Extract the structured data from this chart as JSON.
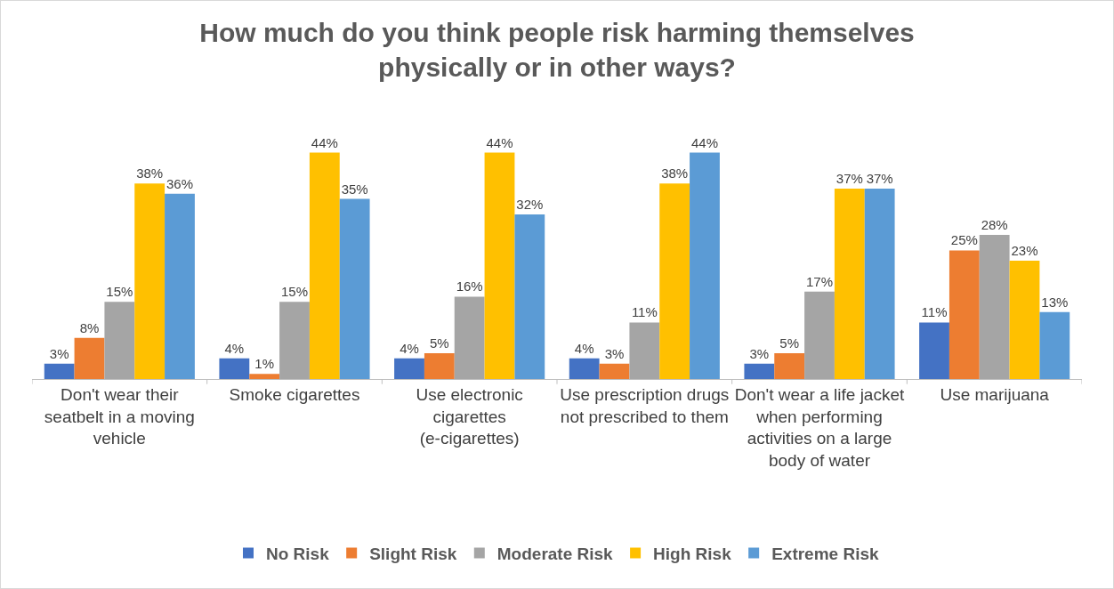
{
  "chart_data": {
    "type": "bar",
    "title": "How much do you think people risk harming themselves physically or in other ways?",
    "categories": [
      "Don't wear their seatbelt in a moving vehicle",
      "Smoke cigarettes",
      "Use electronic cigarettes (e-cigarettes)",
      "Use prescription drugs not prescribed to them",
      "Don't wear a life jacket when performing activities on a large body of water",
      "Use marijuana"
    ],
    "series": [
      {
        "name": "No Risk",
        "color": "#4472c4",
        "values": [
          3,
          4,
          4,
          4,
          3,
          11
        ],
        "value_labels": [
          "3%",
          "4%",
          "4%",
          "4%",
          "3%",
          "11%"
        ]
      },
      {
        "name": "Slight Risk",
        "color": "#ed7d31",
        "values": [
          8,
          1,
          5,
          3,
          5,
          25
        ],
        "value_labels": [
          "8%",
          "1%",
          "5%",
          "3%",
          "5%",
          "25%"
        ]
      },
      {
        "name": "Moderate Risk",
        "color": "#a5a5a5",
        "values": [
          15,
          15,
          16,
          11,
          17,
          28
        ],
        "value_labels": [
          "15%",
          "15%",
          "16%",
          "11%",
          "17%",
          "28%"
        ]
      },
      {
        "name": "High Risk",
        "color": "#ffc000",
        "values": [
          38,
          44,
          44,
          38,
          37,
          23
        ],
        "value_labels": [
          "38%",
          "44%",
          "44%",
          "38%",
          "37%",
          "23%"
        ]
      },
      {
        "name": "Extreme Risk",
        "color": "#5b9bd5",
        "values": [
          36,
          35,
          32,
          44,
          37,
          13
        ],
        "value_labels": [
          "36%",
          "35%",
          "32%",
          "44%",
          "37%",
          "13%"
        ]
      }
    ],
    "tick_labels": "x",
    "grid": false,
    "legend": "bottom"
  }
}
